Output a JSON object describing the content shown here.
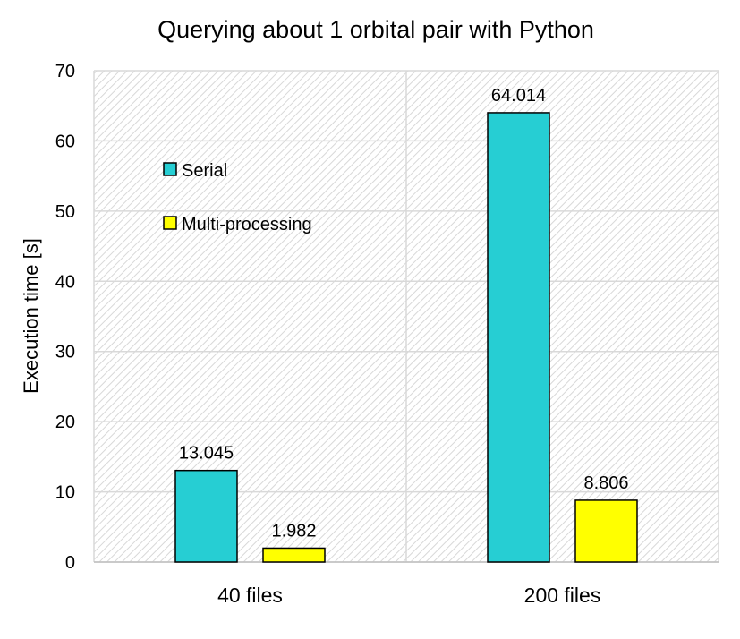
{
  "chart_data": {
    "type": "bar",
    "title": "Querying about 1 orbital pair with Python",
    "xlabel": "",
    "ylabel": "Execution time [s]",
    "ylim": [
      0,
      70
    ],
    "yticks": [
      0,
      10,
      20,
      30,
      40,
      50,
      60,
      70
    ],
    "categories": [
      "40 files",
      "200 files"
    ],
    "series": [
      {
        "name": "Serial",
        "values": [
          13.045,
          64.014
        ],
        "labels": [
          "13.045",
          "64.014"
        ],
        "color": "#26CED3"
      },
      {
        "name": "Multi-processing",
        "values": [
          1.982,
          8.806
        ],
        "labels": [
          "1.982",
          "8.806"
        ],
        "color": "#FFFF00"
      }
    ],
    "grid": true,
    "legend_position": "top-left",
    "background": "diagonal-hatch"
  }
}
